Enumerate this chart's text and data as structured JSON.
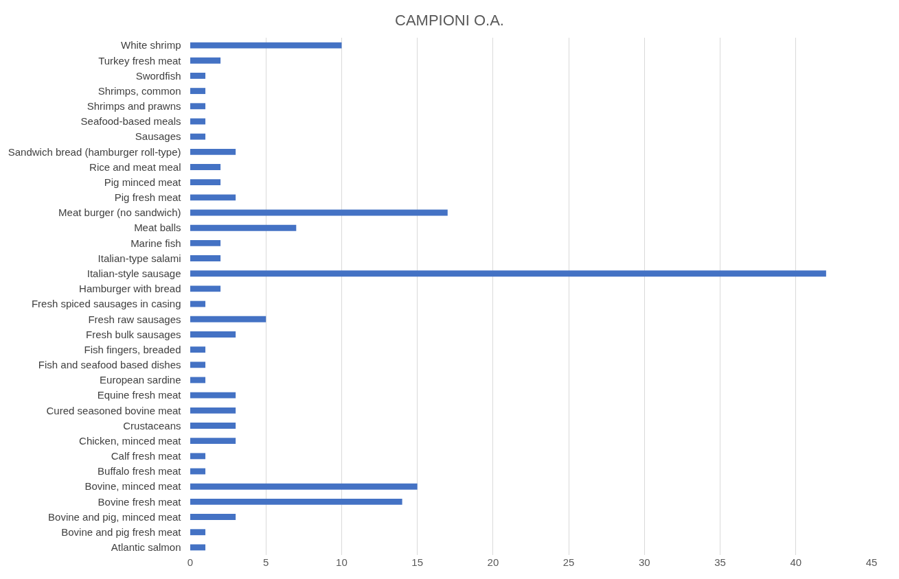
{
  "chart_data": {
    "type": "bar",
    "orientation": "horizontal",
    "title": "CAMPIONI O.A.",
    "categories": [
      "White shrimp",
      "Turkey fresh meat",
      "Swordfish",
      "Shrimps, common",
      "Shrimps and prawns",
      "Seafood-based meals",
      "Sausages",
      "Sandwich bread (hamburger roll-type)",
      "Rice and meat meal",
      "Pig minced meat",
      "Pig fresh meat",
      "Meat burger (no sandwich)",
      "Meat balls",
      "Marine fish",
      "Italian-type salami",
      "Italian-style sausage",
      "Hamburger with bread",
      "Fresh spiced sausages in casing",
      "Fresh raw sausages",
      "Fresh bulk sausages",
      "Fish fingers, breaded",
      "Fish and seafood based dishes",
      "European sardine",
      "Equine fresh meat",
      "Cured seasoned bovine meat",
      "Crustaceans",
      "Chicken, minced meat",
      "Calf fresh meat",
      "Buffalo fresh meat",
      "Bovine, minced meat",
      "Bovine fresh meat",
      "Bovine and pig, minced meat",
      "Bovine and pig fresh meat",
      "Atlantic salmon"
    ],
    "values": [
      10,
      2,
      1,
      1,
      1,
      1,
      1,
      3,
      2,
      2,
      3,
      17,
      7,
      2,
      2,
      42,
      2,
      1,
      5,
      3,
      1,
      1,
      1,
      3,
      3,
      3,
      3,
      1,
      1,
      15,
      14,
      3,
      1,
      1
    ],
    "color": "#4472c4",
    "xlim": [
      0,
      45
    ],
    "xticks": [
      0,
      5,
      10,
      15,
      20,
      25,
      30,
      35,
      40,
      45
    ],
    "grid": "x"
  }
}
